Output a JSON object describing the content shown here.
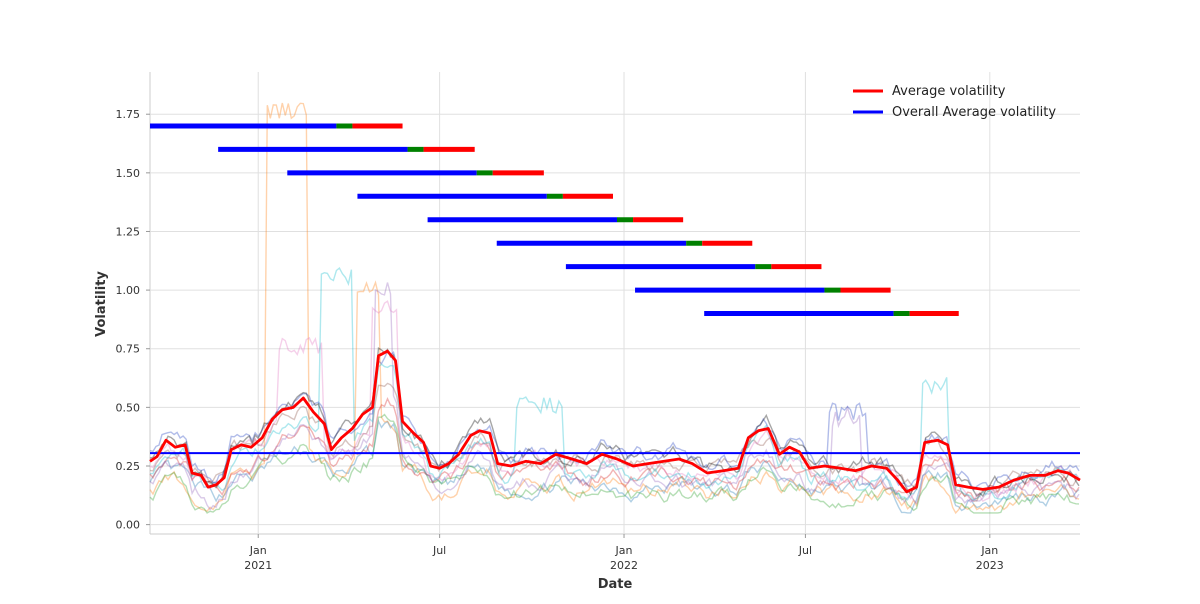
{
  "chart_data": {
    "type": "line",
    "xlabel": "Date",
    "ylabel": "Volatility",
    "ylim": [
      -0.04,
      1.93
    ],
    "xlim": [
      "2020-09-15",
      "2023-04-01"
    ],
    "grid": true,
    "legend_position": "top-right",
    "y_ticks": [
      0.0,
      0.25,
      0.5,
      0.75,
      1.0,
      1.25,
      1.5,
      1.75
    ],
    "y_tick_labels": [
      "0.00",
      "0.25",
      "0.50",
      "0.75",
      "1.00",
      "1.25",
      "1.50",
      "1.75"
    ],
    "x_ticks": [
      {
        "date": "2021-01-01",
        "label": "Jan",
        "sublabel": "2021"
      },
      {
        "date": "2021-07-01",
        "label": "Jul",
        "sublabel": ""
      },
      {
        "date": "2022-01-01",
        "label": "Jan",
        "sublabel": "2022"
      },
      {
        "date": "2022-07-01",
        "label": "Jul",
        "sublabel": ""
      },
      {
        "date": "2023-01-01",
        "label": "Jan",
        "sublabel": "2023"
      }
    ],
    "legend": [
      {
        "label": "Average volatility",
        "color": "#ff0000"
      },
      {
        "label": "Overall Average volatility",
        "color": "#0000ff"
      }
    ],
    "overall_average": {
      "name": "Overall Average volatility",
      "color": "#0000ff",
      "value": 0.305
    },
    "average_series": {
      "name": "Average volatility",
      "color": "#ff0000",
      "points": [
        [
          "2020-09-15",
          0.27
        ],
        [
          "2020-09-22",
          0.29
        ],
        [
          "2020-10-01",
          0.36
        ],
        [
          "2020-10-10",
          0.33
        ],
        [
          "2020-10-20",
          0.34
        ],
        [
          "2020-10-27",
          0.22
        ],
        [
          "2020-11-05",
          0.21
        ],
        [
          "2020-11-12",
          0.16
        ],
        [
          "2020-11-20",
          0.17
        ],
        [
          "2020-11-28",
          0.2
        ],
        [
          "2020-12-05",
          0.32
        ],
        [
          "2020-12-15",
          0.34
        ],
        [
          "2020-12-25",
          0.33
        ],
        [
          "2021-01-05",
          0.37
        ],
        [
          "2021-01-15",
          0.45
        ],
        [
          "2021-01-25",
          0.49
        ],
        [
          "2021-02-05",
          0.5
        ],
        [
          "2021-02-15",
          0.54
        ],
        [
          "2021-02-25",
          0.48
        ],
        [
          "2021-03-08",
          0.43
        ],
        [
          "2021-03-15",
          0.32
        ],
        [
          "2021-03-25",
          0.37
        ],
        [
          "2021-04-05",
          0.41
        ],
        [
          "2021-04-15",
          0.47
        ],
        [
          "2021-04-25",
          0.5
        ],
        [
          "2021-05-01",
          0.72
        ],
        [
          "2021-05-10",
          0.74
        ],
        [
          "2021-05-18",
          0.7
        ],
        [
          "2021-05-25",
          0.44
        ],
        [
          "2021-06-05",
          0.39
        ],
        [
          "2021-06-15",
          0.35
        ],
        [
          "2021-06-22",
          0.25
        ],
        [
          "2021-07-01",
          0.24
        ],
        [
          "2021-07-10",
          0.26
        ],
        [
          "2021-07-20",
          0.3
        ],
        [
          "2021-08-01",
          0.38
        ],
        [
          "2021-08-10",
          0.4
        ],
        [
          "2021-08-20",
          0.39
        ],
        [
          "2021-08-28",
          0.26
        ],
        [
          "2021-09-10",
          0.25
        ],
        [
          "2021-09-25",
          0.27
        ],
        [
          "2021-10-10",
          0.26
        ],
        [
          "2021-10-25",
          0.3
        ],
        [
          "2021-11-10",
          0.28
        ],
        [
          "2021-11-25",
          0.26
        ],
        [
          "2021-12-10",
          0.3
        ],
        [
          "2021-12-25",
          0.28
        ],
        [
          "2022-01-10",
          0.25
        ],
        [
          "2022-01-25",
          0.26
        ],
        [
          "2022-02-10",
          0.27
        ],
        [
          "2022-02-25",
          0.28
        ],
        [
          "2022-03-10",
          0.26
        ],
        [
          "2022-03-25",
          0.22
        ],
        [
          "2022-04-10",
          0.23
        ],
        [
          "2022-04-25",
          0.24
        ],
        [
          "2022-05-05",
          0.37
        ],
        [
          "2022-05-15",
          0.4
        ],
        [
          "2022-05-25",
          0.41
        ],
        [
          "2022-06-05",
          0.3
        ],
        [
          "2022-06-15",
          0.33
        ],
        [
          "2022-06-25",
          0.31
        ],
        [
          "2022-07-05",
          0.24
        ],
        [
          "2022-07-20",
          0.25
        ],
        [
          "2022-08-05",
          0.24
        ],
        [
          "2022-08-20",
          0.23
        ],
        [
          "2022-09-05",
          0.25
        ],
        [
          "2022-09-20",
          0.24
        ],
        [
          "2022-10-01",
          0.19
        ],
        [
          "2022-10-10",
          0.14
        ],
        [
          "2022-10-20",
          0.16
        ],
        [
          "2022-10-28",
          0.35
        ],
        [
          "2022-11-10",
          0.36
        ],
        [
          "2022-11-20",
          0.34
        ],
        [
          "2022-11-28",
          0.17
        ],
        [
          "2022-12-10",
          0.16
        ],
        [
          "2022-12-25",
          0.15
        ],
        [
          "2023-01-10",
          0.16
        ],
        [
          "2023-01-25",
          0.19
        ],
        [
          "2023-02-10",
          0.21
        ],
        [
          "2023-02-25",
          0.21
        ],
        [
          "2023-03-10",
          0.23
        ],
        [
          "2023-03-20",
          0.22
        ],
        [
          "2023-04-01",
          0.19
        ]
      ]
    },
    "individual_series_colors": [
      "#1f77b4",
      "#ff7f0e",
      "#2ca02c",
      "#d62728",
      "#9467bd",
      "#8c564b",
      "#e377c2",
      "#17becf",
      "#1f3fbf",
      "#000000"
    ],
    "windows": [
      {
        "y": 1.7,
        "start": "2020-09-15",
        "train_end": "2021-03-20",
        "val_end": "2021-04-05",
        "test_end": "2021-05-25"
      },
      {
        "y": 1.6,
        "start": "2020-11-22",
        "train_end": "2021-05-30",
        "val_end": "2021-06-15",
        "test_end": "2021-08-05"
      },
      {
        "y": 1.5,
        "start": "2021-01-30",
        "train_end": "2021-08-07",
        "val_end": "2021-08-23",
        "test_end": "2021-10-13"
      },
      {
        "y": 1.4,
        "start": "2021-04-10",
        "train_end": "2021-10-16",
        "val_end": "2021-11-01",
        "test_end": "2021-12-21"
      },
      {
        "y": 1.3,
        "start": "2021-06-19",
        "train_end": "2021-12-25",
        "val_end": "2022-01-10",
        "test_end": "2022-03-01"
      },
      {
        "y": 1.2,
        "start": "2021-08-27",
        "train_end": "2022-03-04",
        "val_end": "2022-03-20",
        "test_end": "2022-05-09"
      },
      {
        "y": 1.1,
        "start": "2021-11-04",
        "train_end": "2022-05-12",
        "val_end": "2022-05-28",
        "test_end": "2022-07-17"
      },
      {
        "y": 1.0,
        "start": "2022-01-12",
        "train_end": "2022-07-20",
        "val_end": "2022-08-05",
        "test_end": "2022-09-24"
      },
      {
        "y": 0.9,
        "start": "2022-03-22",
        "train_end": "2022-09-27",
        "val_end": "2022-10-13",
        "test_end": "2022-12-01"
      }
    ],
    "window_colors": {
      "train": "#0000ff",
      "validation": "#008000",
      "test": "#ff0000"
    }
  }
}
